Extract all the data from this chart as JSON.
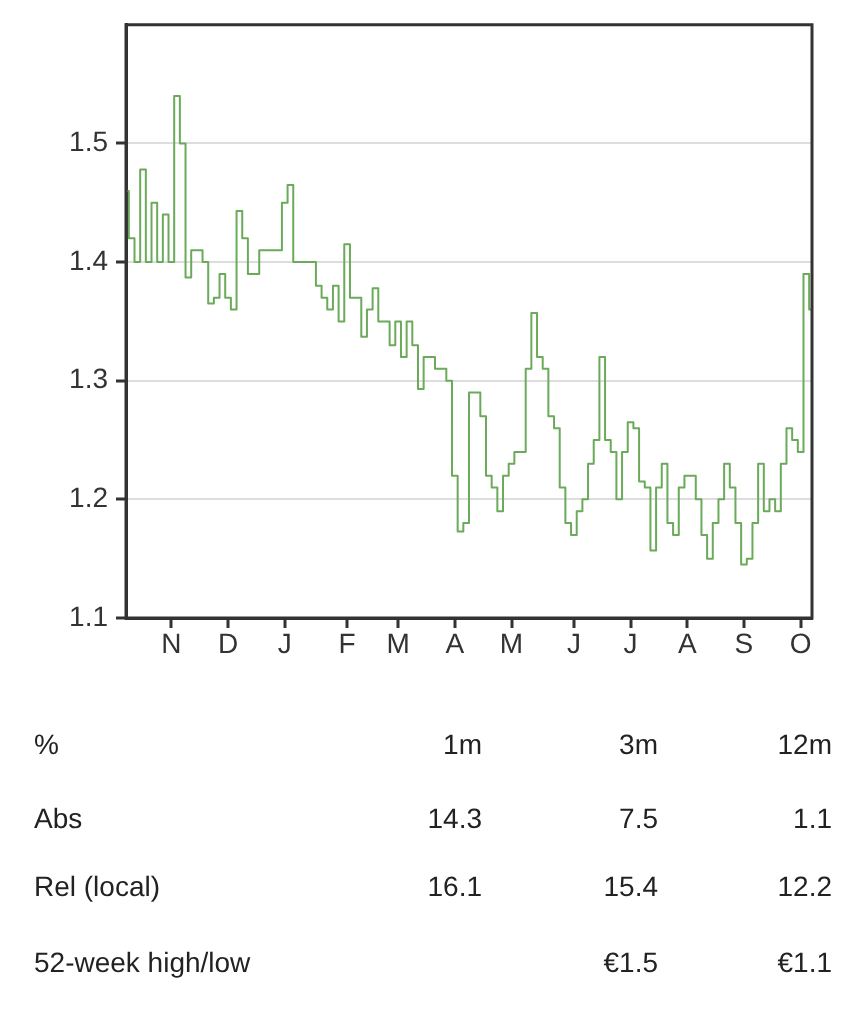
{
  "chart_data": {
    "type": "step",
    "categories": [
      null,
      null,
      null,
      null,
      null,
      null,
      null,
      null,
      "N",
      null,
      null,
      null,
      null,
      null,
      null,
      null,
      null,
      null,
      "D",
      null,
      null,
      null,
      null,
      null,
      null,
      null,
      null,
      null,
      "J",
      null,
      null,
      null,
      null,
      null,
      null,
      null,
      null,
      null,
      null,
      "F",
      null,
      null,
      null,
      null,
      null,
      null,
      null,
      null,
      "M",
      null,
      null,
      null,
      null,
      null,
      null,
      null,
      null,
      null,
      "A",
      null,
      null,
      null,
      null,
      null,
      null,
      null,
      null,
      null,
      "M",
      null,
      null,
      null,
      null,
      null,
      null,
      null,
      null,
      null,
      null,
      "J",
      null,
      null,
      null,
      null,
      null,
      null,
      null,
      null,
      null,
      "J",
      null,
      null,
      null,
      null,
      null,
      null,
      null,
      null,
      null,
      "A",
      null,
      null,
      null,
      null,
      null,
      null,
      null,
      null,
      null,
      "S",
      null,
      null,
      null,
      null,
      null,
      null,
      null,
      null,
      null,
      "O",
      null,
      null
    ],
    "series": [
      {
        "color": "#6aaa5a",
        "values": [
          1.46,
          1.42,
          1.4,
          1.478,
          1.4,
          1.45,
          1.4,
          1.44,
          1.4,
          1.54,
          1.5,
          1.387,
          1.41,
          1.41,
          1.4,
          1.365,
          1.37,
          1.39,
          1.37,
          1.36,
          1.443,
          1.42,
          1.39,
          1.39,
          1.41,
          1.41,
          1.41,
          1.41,
          1.45,
          1.465,
          1.4,
          1.4,
          1.4,
          1.4,
          1.38,
          1.37,
          1.36,
          1.38,
          1.35,
          1.415,
          1.37,
          1.37,
          1.337,
          1.36,
          1.378,
          1.35,
          1.35,
          1.33,
          1.35,
          1.32,
          1.35,
          1.33,
          1.293,
          1.32,
          1.32,
          1.31,
          1.31,
          1.3,
          1.22,
          1.173,
          1.18,
          1.29,
          1.29,
          1.27,
          1.22,
          1.21,
          1.19,
          1.22,
          1.23,
          1.24,
          1.24,
          1.31,
          1.357,
          1.32,
          1.31,
          1.27,
          1.26,
          1.21,
          1.18,
          1.17,
          1.19,
          1.2,
          1.23,
          1.25,
          1.32,
          1.25,
          1.24,
          1.2,
          1.24,
          1.265,
          1.26,
          1.215,
          1.21,
          1.157,
          1.21,
          1.23,
          1.18,
          1.17,
          1.21,
          1.22,
          1.22,
          1.2,
          1.17,
          1.15,
          1.18,
          1.2,
          1.23,
          1.21,
          1.18,
          1.145,
          1.15,
          1.18,
          1.23,
          1.19,
          1.2,
          1.19,
          1.23,
          1.26,
          1.25,
          1.24,
          1.39,
          1.36
        ]
      }
    ],
    "ylim": [
      1.1,
      1.6
    ],
    "yticks": [
      1.1,
      1.2,
      1.3,
      1.4,
      1.5
    ],
    "grid": "y",
    "legend": false,
    "marker": "none",
    "line_style": "solid",
    "annotations": [
      "%",
      "1m",
      "3m",
      "12m",
      "Abs",
      "14.3",
      "7.5",
      "1.1",
      "Rel (local)",
      "16.1",
      "15.4",
      "12.2",
      "52-week high/low",
      "€1.5",
      "€1.1"
    ]
  }
}
